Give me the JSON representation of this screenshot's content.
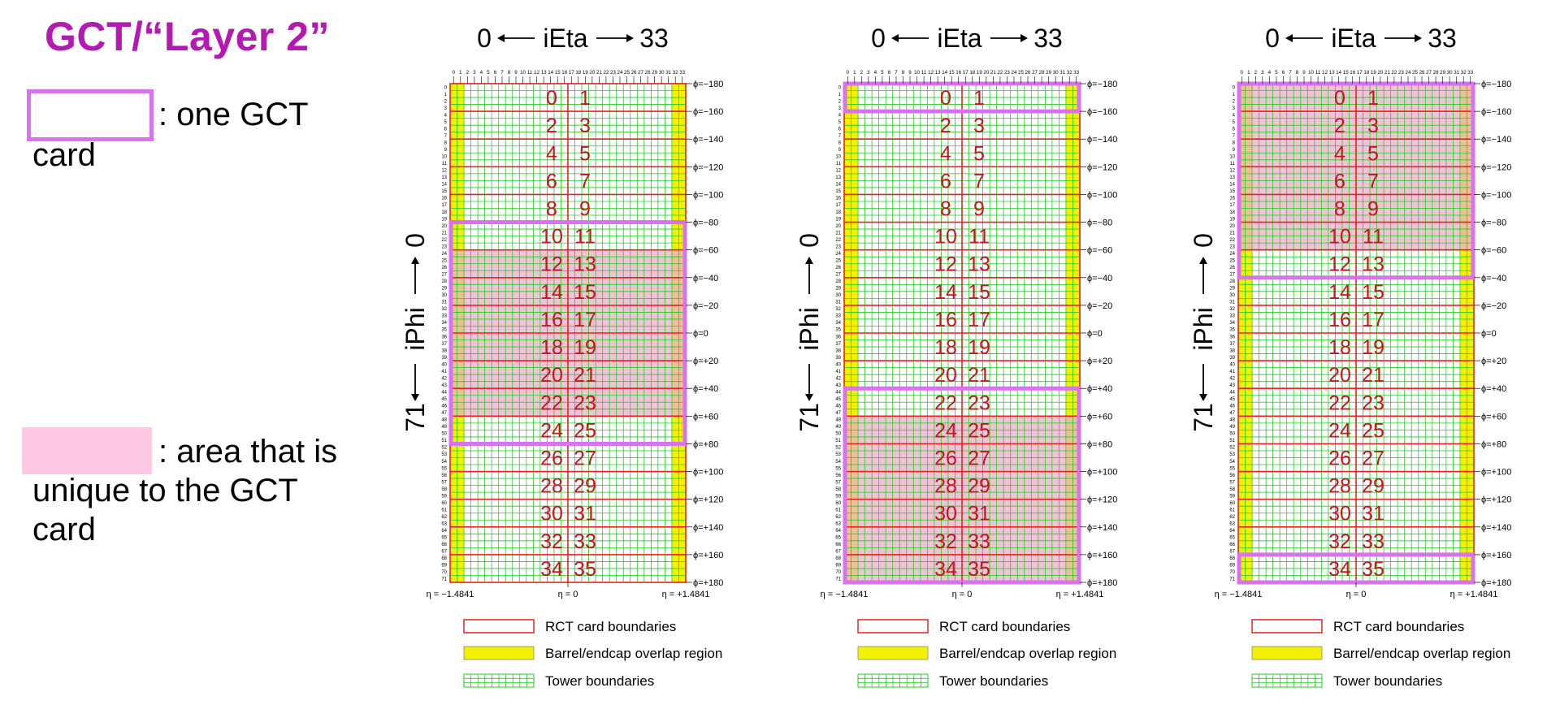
{
  "title": "GCT/“Layer 2”",
  "legend": {
    "card_label_colon": ": one GCT",
    "card_label_wrap": "card",
    "unique_label_colon": ": area that is",
    "unique_label_wrap1": "unique to the GCT",
    "unique_label_wrap2": "card",
    "card_box_color": "#d872f0",
    "unique_color": "#ffc9e4"
  },
  "axes": {
    "ieta_left": "0",
    "ieta_label": "iEta",
    "ieta_right": "33",
    "iphi_top": "0",
    "iphi_label": "iPhi",
    "iphi_bottom": "71",
    "eta_min": "η = −1.4841",
    "eta_mid": "η = 0",
    "eta_max": "η = +1.4841",
    "ieta_ticks": [
      "0",
      "1",
      "2",
      "3",
      "4",
      "5",
      "6",
      "7",
      "8",
      "9",
      "10",
      "11",
      "12",
      "13",
      "14",
      "15",
      "16",
      "17",
      "18",
      "19",
      "20",
      "21",
      "22",
      "23",
      "24",
      "25",
      "26",
      "27",
      "28",
      "29",
      "30",
      "31",
      "32",
      "33"
    ],
    "iphi_tick_count": 72,
    "phi_labels": [
      "ϕ=−180",
      "ϕ=−160",
      "ϕ=−140",
      "ϕ=−120",
      "ϕ=−100",
      "ϕ=−80",
      "ϕ=−60",
      "ϕ=−40",
      "ϕ=−20",
      "ϕ=0",
      "ϕ=+20",
      "ϕ=+40",
      "ϕ=+60",
      "ϕ=+80",
      "ϕ=+100",
      "ϕ=+120",
      "ϕ=+140",
      "ϕ=+160",
      "ϕ=+180"
    ]
  },
  "rct_cards": [
    "0",
    "1",
    "2",
    "3",
    "4",
    "5",
    "6",
    "7",
    "8",
    "9",
    "10",
    "11",
    "12",
    "13",
    "14",
    "15",
    "16",
    "17",
    "18",
    "19",
    "20",
    "21",
    "22",
    "23",
    "24",
    "25",
    "26",
    "27",
    "28",
    "29",
    "30",
    "31",
    "32",
    "33",
    "34",
    "35"
  ],
  "key": {
    "rct": "RCT card boundaries",
    "overlap": "Barrel/endcap overlap region",
    "tower": "Tower boundaries"
  },
  "colors": {
    "rct_red": "#e8231f",
    "overlap_yellow": "#f2f200",
    "tower_green": "#22cc22",
    "card_number": "#c8141e",
    "gct_box": "#d872f0",
    "unique_fill": "#e9b0c8"
  },
  "gct_cards": [
    {
      "card_iphi_start": 20,
      "card_iphi_end": 51,
      "unique_iphi_start": 24,
      "unique_iphi_end": 47
    },
    {
      "card_iphi_start": 44,
      "card_iphi_end": 3,
      "unique_iphi_start": 48,
      "unique_iphi_end": 71
    },
    {
      "card_iphi_start": 68,
      "card_iphi_end": 27,
      "unique_iphi_start": 0,
      "unique_iphi_end": 23
    }
  ]
}
